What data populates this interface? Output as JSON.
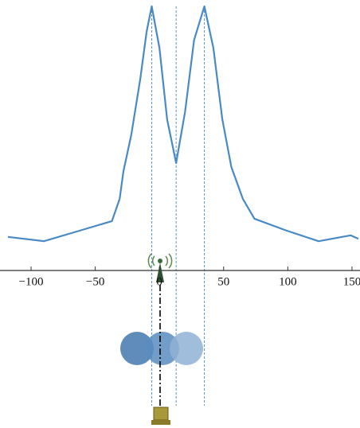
{
  "chart_data": {
    "type": "line",
    "x": [
      -118,
      -90,
      -62,
      -37,
      -31,
      -28,
      -22,
      -15,
      -10,
      -6,
      0,
      6,
      13,
      20,
      27,
      35,
      42,
      49,
      56,
      65,
      74,
      99,
      124,
      149,
      155
    ],
    "series": [
      {
        "color": "#4a8ac4",
        "values": [
          12.7,
          11.1,
          15.1,
          18.7,
          27.1,
          37.7,
          51.2,
          72.3,
          90.4,
          100,
          84.3,
          57.2,
          40.7,
          60.2,
          87.3,
          100,
          84.3,
          57.2,
          39.2,
          27.1,
          19.6,
          15.1,
          11.1,
          13.3,
          12.0
        ]
      }
    ],
    "vlines": [
      -6,
      13,
      35
    ],
    "xlim": [
      -118,
      155
    ],
    "ylim": [
      0,
      100
    ],
    "xticks": [
      {
        "value": -100,
        "label": "−100"
      },
      {
        "value": -50,
        "label": "−50"
      },
      0,
      50,
      100,
      150
    ]
  }
}
